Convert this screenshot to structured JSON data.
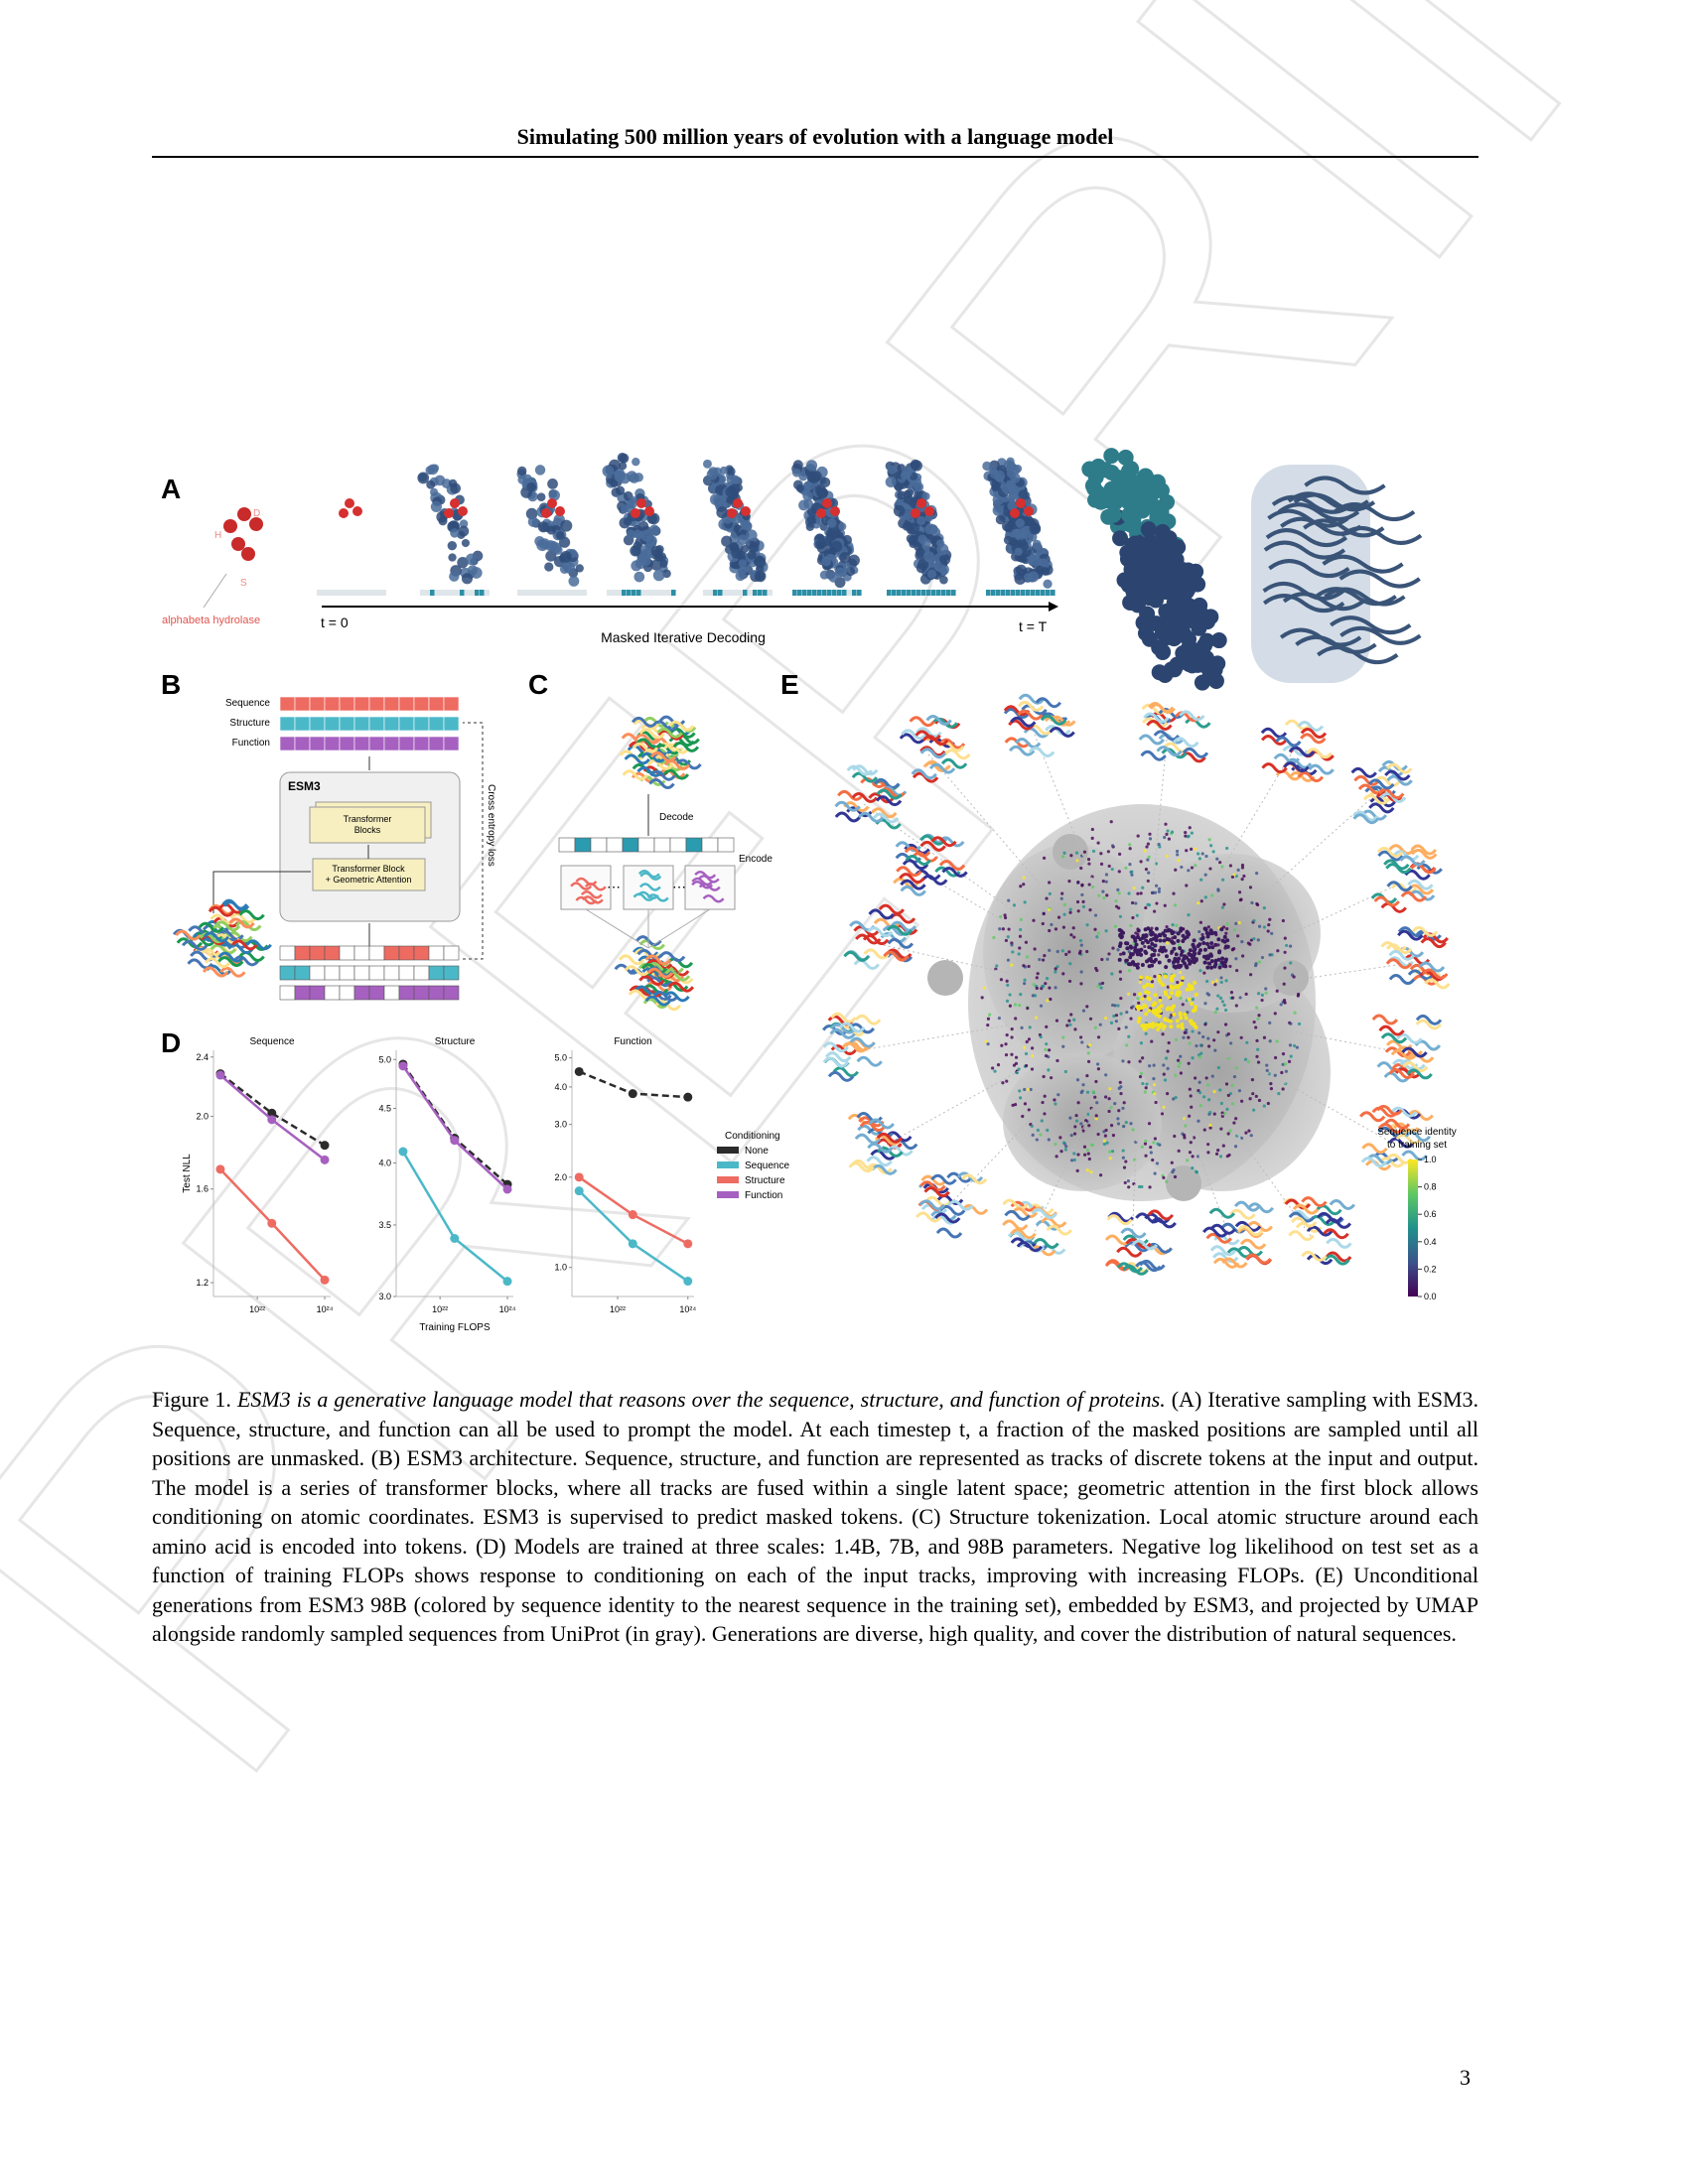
{
  "header": {
    "title": "Simulating 500 million years of evolution with a language model"
  },
  "watermark": "PREPRINT",
  "figure": {
    "panel_a": {
      "label": "A",
      "motif_name": "alphabeta hydrolase",
      "residues": [
        "D",
        "H",
        "S"
      ],
      "t_start": "t = 0",
      "t_end": "t = T",
      "axis_label": "Masked Iterative Decoding"
    },
    "panel_b": {
      "label": "B",
      "tracks": [
        "Sequence",
        "Structure",
        "Function"
      ],
      "model": "ESM3",
      "blocks": "Transformer Blocks",
      "first_block": "Transformer Block + Geometric Attention",
      "loss": "Cross entropy loss"
    },
    "panel_c": {
      "label": "C",
      "decode": "Decode",
      "encode": "Encode"
    },
    "panel_d": {
      "label": "D",
      "y_label": "Test NLL",
      "x_label": "Training FLOPS",
      "legend": {
        "title": "Conditioning",
        "entries": [
          {
            "name": "None",
            "color": "#2b2b2b"
          },
          {
            "name": "Sequence",
            "color": "#4bb8c8"
          },
          {
            "name": "Structure",
            "color": "#ee6b62"
          },
          {
            "name": "Function",
            "color": "#a660c0"
          }
        ]
      },
      "charts": [
        {
          "type": "line",
          "title": "Sequence",
          "log_x": true,
          "log_y": true,
          "x": [
            8e+20,
            2.7e+22,
            1e+24
          ],
          "xlim": [
            5e+20,
            1.5e+24
          ],
          "xticks": [
            {
              "value": 1e+22,
              "label": "10²²"
            },
            {
              "value": 1e+24,
              "label": "10²⁴"
            }
          ],
          "ylim": [
            1.15,
            2.45
          ],
          "yticks": [
            2.4,
            {
              "value": 2.0,
              "label": "2.0"
            },
            1.6,
            1.2
          ],
          "series": [
            {
              "name": "None",
              "color": "#2b2b2b",
              "dashed": true,
              "values": [
                2.28,
                2.02,
                1.83
              ]
            },
            {
              "name": "Function",
              "color": "#a660c0",
              "values": [
                2.27,
                1.98,
                1.75
              ]
            },
            {
              "name": "Structure",
              "color": "#ee6b62",
              "values": [
                1.7,
                1.44,
                1.21
              ]
            }
          ]
        },
        {
          "type": "line",
          "title": "Structure",
          "log_x": true,
          "log_y": true,
          "x": [
            8e+20,
            2.7e+22,
            1e+24
          ],
          "xlim": [
            5e+20,
            1.5e+24
          ],
          "xticks": [
            {
              "value": 1e+22,
              "label": "10²²"
            },
            {
              "value": 1e+24,
              "label": "10²⁴"
            }
          ],
          "ylim": [
            3.0,
            5.1
          ],
          "yticks": [
            {
              "value": 5.0,
              "label": "5.0"
            },
            4.5,
            {
              "value": 4.0,
              "label": "4.0"
            },
            3.5,
            {
              "value": 3.0,
              "label": "3.0"
            }
          ],
          "series": [
            {
              "name": "None",
              "color": "#2b2b2b",
              "dashed": true,
              "values": [
                4.95,
                4.22,
                3.82
              ]
            },
            {
              "name": "Function",
              "color": "#a660c0",
              "values": [
                4.93,
                4.2,
                3.78
              ]
            },
            {
              "name": "Sequence",
              "color": "#4bb8c8",
              "values": [
                4.1,
                3.4,
                3.1
              ]
            }
          ]
        },
        {
          "type": "line",
          "title": "Function",
          "log_x": true,
          "log_y": true,
          "x": [
            8e+20,
            2.7e+22,
            1e+24
          ],
          "xlim": [
            5e+20,
            1.5e+24
          ],
          "xticks": [
            {
              "value": 1e+22,
              "label": "10²²"
            },
            {
              "value": 1e+24,
              "label": "10²⁴"
            }
          ],
          "ylim": [
            0.8,
            5.3
          ],
          "yticks": [
            {
              "value": 5.0,
              "label": "5.0"
            },
            {
              "value": 4.0,
              "label": "4.0"
            },
            {
              "value": 3.0,
              "label": "3.0"
            },
            {
              "value": 2.0,
              "label": "2.0"
            },
            {
              "value": 1.0,
              "label": "1.0"
            }
          ],
          "series": [
            {
              "name": "None",
              "color": "#2b2b2b",
              "dashed": true,
              "values": [
                4.5,
                3.8,
                3.7
              ]
            },
            {
              "name": "Structure",
              "color": "#ee6b62",
              "values": [
                2.0,
                1.5,
                1.2
              ]
            },
            {
              "name": "Sequence",
              "color": "#4bb8c8",
              "values": [
                1.8,
                1.2,
                0.9
              ]
            }
          ]
        }
      ]
    },
    "panel_e": {
      "label": "E",
      "colorbar_title": [
        "Sequence identity",
        "to training set"
      ],
      "colorbar_ticks": [
        {
          "value": 1.0,
          "label": "1.0"
        },
        0.8,
        0.6,
        0.4,
        0.2,
        {
          "value": 0.0,
          "label": "0.0"
        }
      ]
    }
  },
  "caption": {
    "figure_label": "Figure 1.",
    "title": "ESM3 is a generative language model that reasons over the sequence, structure, and function of proteins.",
    "text": "(A) Iterative sampling with ESM3. Sequence, structure, and function can all be used to prompt the model. At each timestep t, a fraction of the masked positions are sampled until all positions are unmasked. (B) ESM3 architecture. Sequence, structure, and function are represented as tracks of discrete tokens at the input and output. The model is a series of transformer blocks, where all tracks are fused within a single latent space; geometric attention in the first block allows conditioning on atomic coordinates. ESM3 is supervised to predict masked tokens. (C) Structure tokenization. Local atomic structure around each amino acid is encoded into tokens. (D) Models are trained at three scales: 1.4B, 7B, and 98B parameters. Negative log likelihood on test set as a function of training FLOPs shows response to conditioning on each of the input tracks, improving with increasing FLOPs. (E) Unconditional generations from ESM3 98B (colored by sequence identity to the nearest sequence in the training set), embedded by ESM3, and projected by UMAP alongside randomly sampled sequences from UniProt (in gray). Generations are diverse, high quality, and cover the distribution of natural sequences."
  },
  "page_number": "3"
}
